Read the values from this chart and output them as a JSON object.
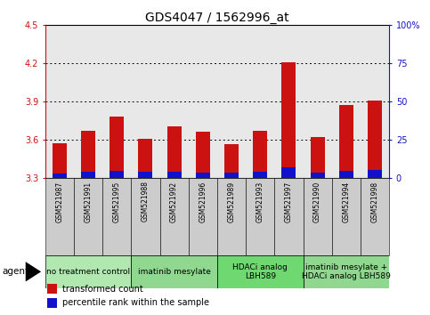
{
  "title": "GDS4047 / 1562996_at",
  "samples": [
    "GSM521987",
    "GSM521991",
    "GSM521995",
    "GSM521988",
    "GSM521992",
    "GSM521996",
    "GSM521989",
    "GSM521993",
    "GSM521997",
    "GSM521990",
    "GSM521994",
    "GSM521998"
  ],
  "red_values": [
    3.575,
    3.67,
    3.78,
    3.605,
    3.705,
    3.665,
    3.565,
    3.67,
    4.21,
    3.625,
    3.875,
    3.905
  ],
  "blue_values": [
    0.038,
    0.05,
    0.055,
    0.05,
    0.05,
    0.045,
    0.042,
    0.046,
    0.082,
    0.045,
    0.055,
    0.062
  ],
  "ymin": 3.3,
  "ymax": 4.5,
  "yticks": [
    3.3,
    3.6,
    3.9,
    4.2,
    4.5
  ],
  "right_ytick_vals": [
    0,
    25,
    50,
    75,
    100
  ],
  "right_ytick_labels": [
    "0",
    "25",
    "50",
    "75",
    "100%"
  ],
  "red_color": "#cc1111",
  "blue_color": "#1111cc",
  "plot_bg": "#e8e8e8",
  "bar_width": 0.5,
  "agent_groups": [
    {
      "label": "no treatment control",
      "count": 3,
      "color": "#b0e8b0"
    },
    {
      "label": "imatinib mesylate",
      "count": 3,
      "color": "#90d890"
    },
    {
      "label": "HDACi analog\nLBH589",
      "count": 3,
      "color": "#70d870"
    },
    {
      "label": "imatinib mesylate +\nHDACi analog LBH589",
      "count": 3,
      "color": "#90d890"
    }
  ],
  "legend_items": [
    {
      "label": "transformed count",
      "color": "#cc1111"
    },
    {
      "label": "percentile rank within the sample",
      "color": "#1111cc"
    }
  ],
  "title_fontsize": 10,
  "tick_fontsize": 7,
  "sample_fontsize": 5.5,
  "group_fontsize": 6.5,
  "legend_fontsize": 7
}
